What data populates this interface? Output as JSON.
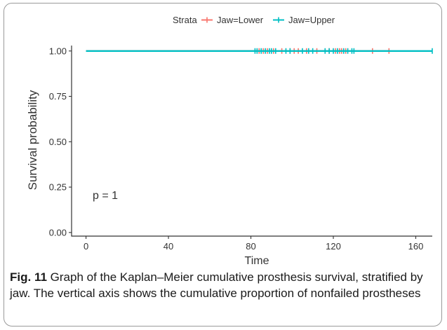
{
  "chart_data": {
    "type": "line",
    "subtype": "kaplan-meier survival curve",
    "xlabel": "Time",
    "ylabel": "Survival probability",
    "xlim": [
      -7,
      168
    ],
    "ylim": [
      -0.02,
      1.03
    ],
    "x_ticks": [
      "0",
      "40",
      "80",
      "120",
      "160"
    ],
    "x_tick_values": [
      0,
      40,
      80,
      120,
      160
    ],
    "y_ticks": [
      "0.00",
      "0.25",
      "0.50",
      "0.75",
      "1.00"
    ],
    "y_tick_values": [
      0,
      0.25,
      0.5,
      0.75,
      1.0
    ],
    "legend_title": "Strata",
    "legend_position": "top",
    "annotation": "p = 1",
    "grid": false,
    "series": [
      {
        "name": "Jaw=Lower",
        "color": "#F8766D",
        "x": [
          0,
          147
        ],
        "y": [
          1.0,
          1.0
        ],
        "censor_times": [
          84,
          86,
          88,
          91,
          95,
          99,
          101,
          103,
          107,
          112,
          118,
          121,
          123,
          124,
          126,
          139,
          147
        ]
      },
      {
        "name": "Jaw=Upper",
        "color": "#00BFC4",
        "x": [
          0,
          168
        ],
        "y": [
          1.0,
          1.0
        ],
        "censor_times": [
          82,
          83,
          85,
          87,
          89,
          90,
          92,
          97,
          99,
          105,
          108,
          110,
          116,
          118,
          120,
          122,
          125,
          127,
          129,
          130,
          168
        ]
      }
    ]
  },
  "caption": {
    "label": "Fig. 11",
    "text": "Graph of the Kaplan–Meier cumulative prosthesis survival, stratified by jaw. The vertical axis shows the cumulative proportion of nonfailed prostheses"
  }
}
